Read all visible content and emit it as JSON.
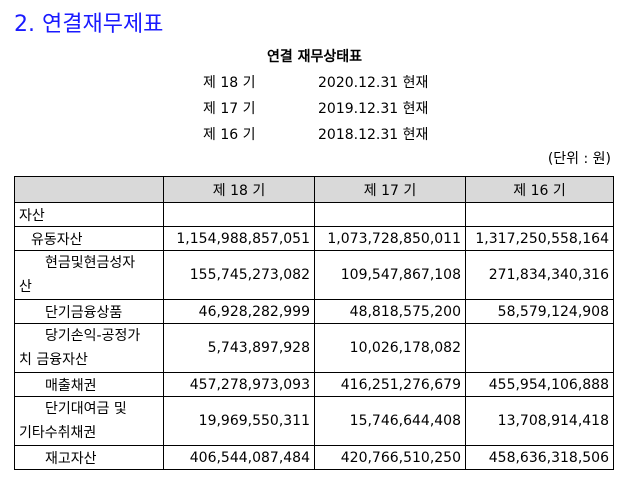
{
  "section_title": "2. 연결재무제표",
  "report_title": "연결 재무상태표",
  "periods": [
    {
      "label": "제 18 기",
      "date": "2020.12.31 현재"
    },
    {
      "label": "제 17 기",
      "date": "2019.12.31 현재"
    },
    {
      "label": "제 16 기",
      "date": "2018.12.31 현재"
    }
  ],
  "unit": "(단위 : 원)",
  "table": {
    "headers": [
      "",
      "제 18 기",
      "제 17 기",
      "제 16 기"
    ],
    "rows": [
      {
        "account": "자산",
        "values": [
          "",
          "",
          ""
        ]
      },
      {
        "account": "유동자산",
        "values": [
          "1,154,988,857,051",
          "1,073,728,850,011",
          "1,317,250,558,164"
        ]
      },
      {
        "account_line1": "현금및현금성자",
        "account_line2": "산",
        "values": [
          "155,745,273,082",
          "109,547,867,108",
          "271,834,340,316"
        ]
      },
      {
        "account": "단기금융상품",
        "values": [
          "46,928,282,999",
          "48,818,575,200",
          "58,579,124,908"
        ]
      },
      {
        "account_line1": "당기손익-공정가",
        "account_line2": "치 금융자산",
        "values": [
          "5,743,897,928",
          "10,026,178,082",
          ""
        ]
      },
      {
        "account": "매출채권",
        "values": [
          "457,278,973,093",
          "416,251,276,679",
          "455,954,106,888"
        ]
      },
      {
        "account_line1": "단기대여금 및",
        "account_line2": "기타수취채권",
        "values": [
          "19,969,550,311",
          "15,746,644,408",
          "13,708,914,418"
        ]
      },
      {
        "account": "재고자산",
        "values": [
          "406,544,087,484",
          "420,766,510,250",
          "458,636,318,506"
        ]
      }
    ]
  }
}
